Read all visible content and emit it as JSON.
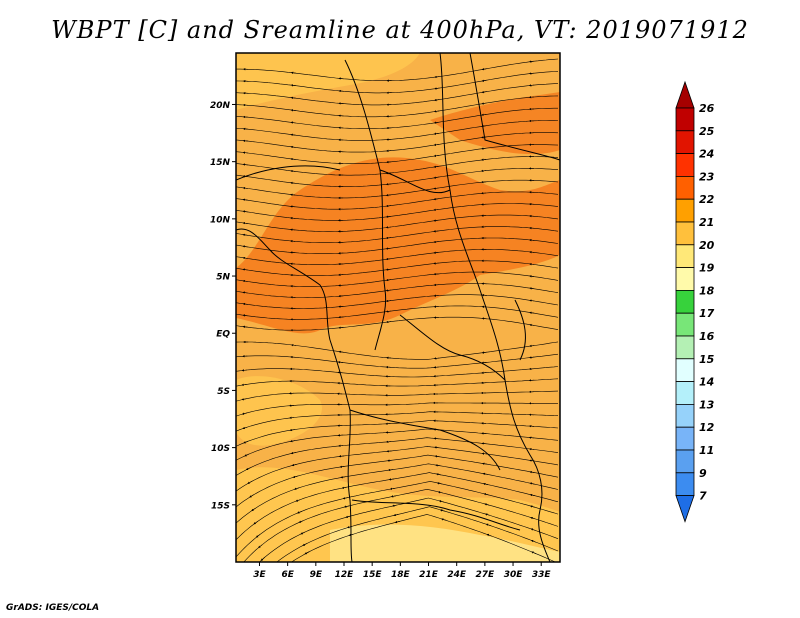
{
  "title": "WBPT [C] and Sreamline at 400hPa, VT: 2019071912",
  "credit": "GrADS: IGES/COLA",
  "map": {
    "lat_ticks": [
      {
        "label": "20N",
        "lat": 20
      },
      {
        "label": "15N",
        "lat": 15
      },
      {
        "label": "10N",
        "lat": 10
      },
      {
        "label": "5N",
        "lat": 5
      },
      {
        "label": "EQ",
        "lat": 0
      },
      {
        "label": "5S",
        "lat": -5
      },
      {
        "label": "10S",
        "lat": -10
      },
      {
        "label": "15S",
        "lat": -15
      }
    ],
    "lon_ticks": [
      {
        "label": "3E",
        "lon": 3
      },
      {
        "label": "6E",
        "lon": 6
      },
      {
        "label": "9E",
        "lon": 9
      },
      {
        "label": "12E",
        "lon": 12
      },
      {
        "label": "15E",
        "lon": 15
      },
      {
        "label": "18E",
        "lon": 18
      },
      {
        "label": "21E",
        "lon": 21
      },
      {
        "label": "24E",
        "lon": 24
      },
      {
        "label": "27E",
        "lon": 27
      },
      {
        "label": "30E",
        "lon": 30
      },
      {
        "label": "33E",
        "lon": 33
      }
    ],
    "lat_range": [
      -20,
      24.5
    ],
    "lon_range": [
      0.5,
      35
    ],
    "field": "WBPT",
    "units": "C",
    "level": "400hPa",
    "base_color": "#f8b248"
  },
  "colorbar": {
    "labels": [
      "7",
      "9",
      "11",
      "12",
      "13",
      "14",
      "15",
      "16",
      "17",
      "18",
      "19",
      "20",
      "21",
      "22",
      "23",
      "24",
      "25",
      "26"
    ],
    "colors": [
      "#1e6ee6",
      "#3c8cf0",
      "#5aa0f0",
      "#78b4f8",
      "#96d2fa",
      "#b4f0fa",
      "#e1ffff",
      "#b4f0b4",
      "#78e678",
      "#37d23c",
      "#fffaaa",
      "#ffe878",
      "#ffc03c",
      "#ffa000",
      "#ff6000",
      "#ff3200",
      "#e11400",
      "#c00000",
      "#a50000"
    ]
  }
}
